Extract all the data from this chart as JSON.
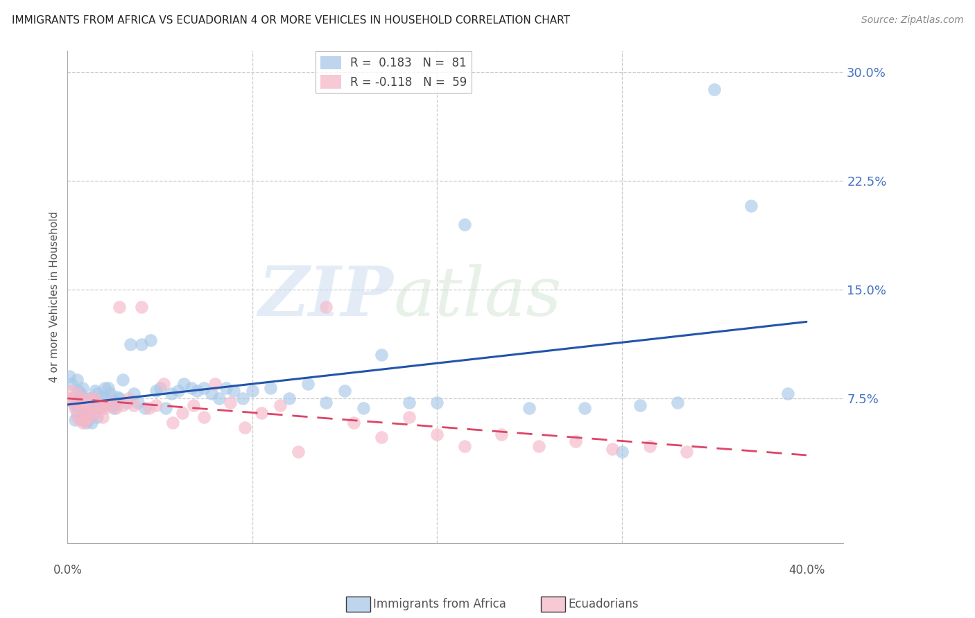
{
  "title": "IMMIGRANTS FROM AFRICA VS ECUADORIAN 4 OR MORE VEHICLES IN HOUSEHOLD CORRELATION CHART",
  "source": "Source: ZipAtlas.com",
  "ylabel": "4 or more Vehicles in Household",
  "africa_color": "#a8c8e8",
  "ecuador_color": "#f4b8c8",
  "africa_line_color": "#2255aa",
  "ecuador_line_color": "#dd4466",
  "watermark_zip": "ZIP",
  "watermark_atlas": "atlas",
  "xlim": [
    0.0,
    0.42
  ],
  "ylim": [
    -0.025,
    0.315
  ],
  "ytick_vals": [
    0.0,
    0.075,
    0.15,
    0.225,
    0.3
  ],
  "ytick_labels": [
    "",
    "7.5%",
    "15.0%",
    "22.5%",
    "30.0%"
  ],
  "africa_x": [
    0.001,
    0.002,
    0.003,
    0.004,
    0.004,
    0.005,
    0.005,
    0.006,
    0.006,
    0.007,
    0.007,
    0.008,
    0.008,
    0.009,
    0.009,
    0.01,
    0.01,
    0.011,
    0.011,
    0.012,
    0.012,
    0.013,
    0.013,
    0.014,
    0.015,
    0.015,
    0.016,
    0.016,
    0.017,
    0.018,
    0.019,
    0.02,
    0.021,
    0.022,
    0.023,
    0.024,
    0.025,
    0.026,
    0.027,
    0.028,
    0.03,
    0.032,
    0.034,
    0.036,
    0.038,
    0.04,
    0.042,
    0.045,
    0.048,
    0.05,
    0.053,
    0.056,
    0.06,
    0.063,
    0.067,
    0.07,
    0.074,
    0.078,
    0.082,
    0.086,
    0.09,
    0.095,
    0.1,
    0.11,
    0.12,
    0.13,
    0.14,
    0.15,
    0.16,
    0.17,
    0.185,
    0.2,
    0.215,
    0.25,
    0.28,
    0.3,
    0.31,
    0.33,
    0.35,
    0.37,
    0.39
  ],
  "africa_y": [
    0.09,
    0.085,
    0.075,
    0.07,
    0.06,
    0.088,
    0.065,
    0.08,
    0.072,
    0.078,
    0.062,
    0.082,
    0.065,
    0.075,
    0.06,
    0.07,
    0.058,
    0.068,
    0.06,
    0.075,
    0.062,
    0.07,
    0.058,
    0.072,
    0.08,
    0.068,
    0.078,
    0.062,
    0.072,
    0.068,
    0.076,
    0.082,
    0.075,
    0.082,
    0.078,
    0.07,
    0.068,
    0.072,
    0.076,
    0.075,
    0.088,
    0.072,
    0.112,
    0.078,
    0.072,
    0.112,
    0.068,
    0.115,
    0.08,
    0.082,
    0.068,
    0.078,
    0.08,
    0.085,
    0.082,
    0.08,
    0.082,
    0.078,
    0.075,
    0.082,
    0.08,
    0.075,
    0.08,
    0.082,
    0.075,
    0.085,
    0.072,
    0.08,
    0.068,
    0.105,
    0.072,
    0.072,
    0.195,
    0.068,
    0.068,
    0.038,
    0.07,
    0.072,
    0.288,
    0.208,
    0.078
  ],
  "ecuador_x": [
    0.001,
    0.002,
    0.003,
    0.004,
    0.005,
    0.005,
    0.006,
    0.007,
    0.007,
    0.008,
    0.008,
    0.009,
    0.009,
    0.01,
    0.01,
    0.011,
    0.012,
    0.012,
    0.013,
    0.014,
    0.015,
    0.016,
    0.017,
    0.018,
    0.019,
    0.02,
    0.022,
    0.024,
    0.026,
    0.028,
    0.03,
    0.033,
    0.036,
    0.04,
    0.044,
    0.048,
    0.052,
    0.057,
    0.062,
    0.068,
    0.074,
    0.08,
    0.088,
    0.096,
    0.105,
    0.115,
    0.125,
    0.14,
    0.155,
    0.17,
    0.185,
    0.2,
    0.215,
    0.235,
    0.255,
    0.275,
    0.295,
    0.315,
    0.335
  ],
  "ecuador_y": [
    0.075,
    0.08,
    0.072,
    0.068,
    0.078,
    0.062,
    0.072,
    0.07,
    0.06,
    0.075,
    0.058,
    0.068,
    0.06,
    0.072,
    0.06,
    0.065,
    0.075,
    0.062,
    0.068,
    0.072,
    0.075,
    0.065,
    0.068,
    0.07,
    0.062,
    0.068,
    0.07,
    0.072,
    0.068,
    0.138,
    0.07,
    0.075,
    0.07,
    0.138,
    0.068,
    0.07,
    0.085,
    0.058,
    0.065,
    0.07,
    0.062,
    0.085,
    0.072,
    0.055,
    0.065,
    0.07,
    0.038,
    0.138,
    0.058,
    0.048,
    0.062,
    0.05,
    0.042,
    0.05,
    0.042,
    0.045,
    0.04,
    0.042,
    0.038
  ]
}
